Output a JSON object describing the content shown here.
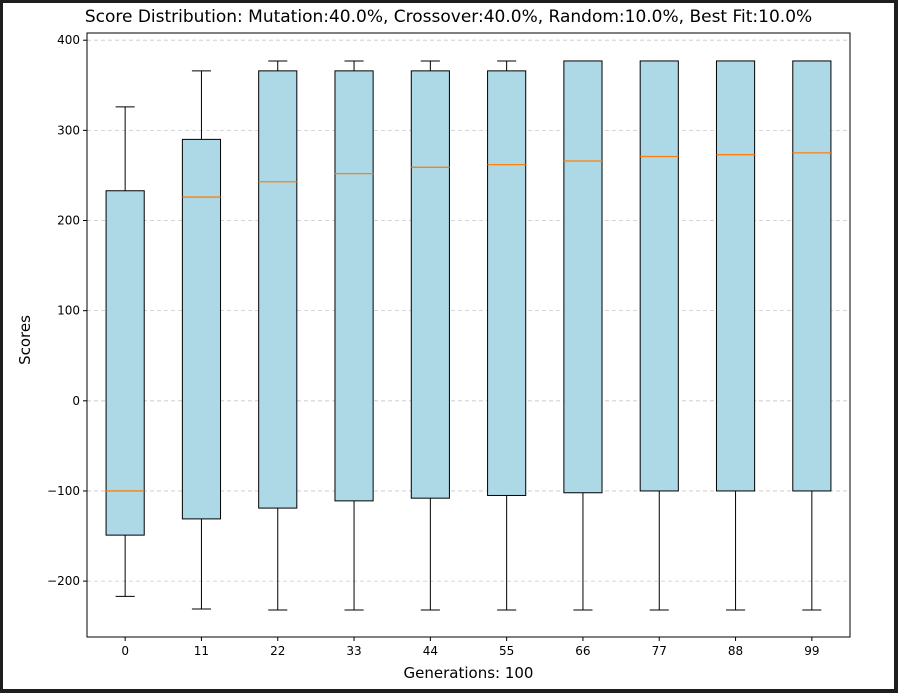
{
  "chart_data": {
    "type": "box",
    "title": "Score Distribution: Mutation:40.0%, Crossover:40.0%, Random:10.0%, Best Fit:10.0%",
    "xlabel": "Generations: 100",
    "ylabel": "Scores",
    "categories": [
      "0",
      "11",
      "22",
      "33",
      "44",
      "55",
      "66",
      "77",
      "88",
      "99"
    ],
    "boxes": [
      {
        "whisker_low": -217,
        "q1": -149,
        "median": -100,
        "q3": 233,
        "whisker_high": 326
      },
      {
        "whisker_low": -231,
        "q1": -131,
        "median": 226,
        "q3": 290,
        "whisker_high": 366
      },
      {
        "whisker_low": -232,
        "q1": -119,
        "median": 243,
        "q3": 366,
        "whisker_high": 377
      },
      {
        "whisker_low": -232,
        "q1": -111,
        "median": 252,
        "q3": 366,
        "whisker_high": 377
      },
      {
        "whisker_low": -232,
        "q1": -108,
        "median": 259,
        "q3": 366,
        "whisker_high": 377
      },
      {
        "whisker_low": -232,
        "q1": -105,
        "median": 262,
        "q3": 366,
        "whisker_high": 377
      },
      {
        "whisker_low": -232,
        "q1": -102,
        "median": 266,
        "q3": 377,
        "whisker_high": 377
      },
      {
        "whisker_low": -232,
        "q1": -100,
        "median": 271,
        "q3": 377,
        "whisker_high": 377
      },
      {
        "whisker_low": -232,
        "q1": -100,
        "median": 273,
        "q3": 377,
        "whisker_high": 377
      },
      {
        "whisker_low": -232,
        "q1": -100,
        "median": 275,
        "q3": 377,
        "whisker_high": 377
      }
    ],
    "yticks": [
      -200,
      -100,
      0,
      100,
      200,
      300,
      400
    ],
    "ytick_labels": [
      "−200",
      "−100",
      "0",
      "100",
      "200",
      "300",
      "400"
    ],
    "ylim": [
      -262,
      408
    ],
    "grid": "y-dashed",
    "colors": {
      "box_fill": "#add8e6",
      "box_edge": "#000000",
      "median": "#ff7f0e",
      "grid": "#c8c8c8",
      "frame": "#1e1e1e"
    }
  }
}
